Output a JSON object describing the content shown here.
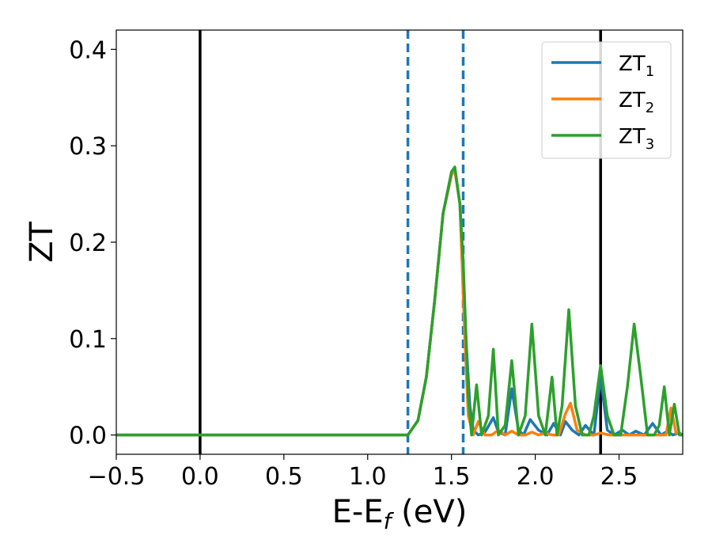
{
  "chart_data": {
    "type": "line",
    "title": "",
    "xlabel": {
      "main": "E-E",
      "sub": "f",
      "tail": " (eV)"
    },
    "ylabel": "ZT",
    "xlim": [
      -0.5,
      2.88
    ],
    "ylim": [
      -0.02,
      0.42
    ],
    "xticks": [
      -0.5,
      0.0,
      0.5,
      1.0,
      1.5,
      2.0,
      2.5
    ],
    "xtick_labels": [
      "−0.5",
      "0.0",
      "0.5",
      "1.0",
      "1.5",
      "2.0",
      "2.5"
    ],
    "yticks": [
      0.0,
      0.1,
      0.2,
      0.3,
      0.4
    ],
    "ytick_labels": [
      "0.0",
      "0.1",
      "0.2",
      "0.3",
      "0.4"
    ],
    "grid": false,
    "legend_position": "top-right",
    "vlines": [
      {
        "x": 0.0,
        "style": "solid",
        "color": "#000000"
      },
      {
        "x": 2.39,
        "style": "solid",
        "color": "#000000"
      },
      {
        "x": 1.24,
        "style": "dashed",
        "color": "#1f77b4"
      },
      {
        "x": 1.57,
        "style": "dashed",
        "color": "#1f77b4"
      }
    ],
    "series": [
      {
        "name": "ZT",
        "subscript": "1",
        "color": "#1f77b4",
        "x": [
          -0.5,
          1.24,
          1.3,
          1.35,
          1.4,
          1.45,
          1.5,
          1.52,
          1.55,
          1.58,
          1.61,
          1.63,
          1.66,
          1.7,
          1.75,
          1.78,
          1.82,
          1.86,
          1.9,
          1.93,
          1.97,
          2.02,
          2.07,
          2.11,
          2.15,
          2.18,
          2.22,
          2.26,
          2.3,
          2.35,
          2.39,
          2.43,
          2.47,
          2.52,
          2.56,
          2.6,
          2.65,
          2.7,
          2.75,
          2.79,
          2.82,
          2.86,
          2.88
        ],
        "y": [
          0.0,
          0.0,
          0.015,
          0.06,
          0.14,
          0.23,
          0.27,
          0.275,
          0.24,
          0.12,
          0.03,
          0.005,
          0.0,
          0.003,
          0.018,
          0.003,
          0.0,
          0.048,
          0.005,
          0.0,
          0.016,
          0.005,
          0.0,
          0.012,
          0.0,
          0.014,
          0.005,
          0.0,
          0.01,
          0.0,
          0.06,
          0.005,
          0.0,
          0.005,
          0.0,
          0.004,
          0.0,
          0.012,
          0.0,
          0.004,
          0.0,
          0.002,
          0.0
        ]
      },
      {
        "name": "ZT",
        "subscript": "2",
        "color": "#ff7f0e",
        "x": [
          -0.5,
          1.24,
          1.3,
          1.35,
          1.4,
          1.45,
          1.5,
          1.52,
          1.55,
          1.58,
          1.6,
          1.63,
          1.66,
          1.7,
          1.74,
          1.78,
          1.82,
          1.86,
          1.9,
          1.94,
          1.98,
          2.02,
          2.06,
          2.1,
          2.14,
          2.18,
          2.21,
          2.25,
          2.3,
          2.35,
          2.39,
          2.44,
          2.5,
          2.55,
          2.6,
          2.65,
          2.7,
          2.74,
          2.78,
          2.81,
          2.84,
          2.88
        ],
        "y": [
          0.0,
          0.0,
          0.015,
          0.06,
          0.14,
          0.23,
          0.27,
          0.275,
          0.24,
          0.1,
          0.02,
          0.0,
          0.014,
          0.0,
          0.0,
          0.005,
          0.0,
          0.004,
          0.0,
          0.0,
          0.003,
          0.0,
          0.002,
          0.0,
          0.0,
          0.022,
          0.033,
          0.005,
          0.0,
          0.0,
          0.002,
          0.0,
          0.0,
          0.0,
          0.0,
          0.0,
          0.0,
          0.0,
          0.0,
          0.028,
          0.002,
          0.0
        ]
      },
      {
        "name": "ZT",
        "subscript": "3",
        "color": "#2ca02c",
        "x": [
          -0.5,
          1.24,
          1.3,
          1.35,
          1.4,
          1.45,
          1.5,
          1.52,
          1.55,
          1.57,
          1.6,
          1.62,
          1.65,
          1.68,
          1.72,
          1.75,
          1.78,
          1.82,
          1.86,
          1.9,
          1.94,
          1.98,
          2.02,
          2.06,
          2.1,
          2.13,
          2.16,
          2.2,
          2.24,
          2.28,
          2.32,
          2.35,
          2.39,
          2.43,
          2.47,
          2.51,
          2.55,
          2.59,
          2.63,
          2.67,
          2.71,
          2.74,
          2.77,
          2.8,
          2.83,
          2.86,
          2.88
        ],
        "y": [
          0.0,
          0.0,
          0.015,
          0.06,
          0.14,
          0.23,
          0.273,
          0.278,
          0.24,
          0.18,
          0.04,
          0.0,
          0.052,
          0.0,
          0.02,
          0.089,
          0.0,
          0.01,
          0.077,
          0.0,
          0.02,
          0.115,
          0.02,
          0.0,
          0.06,
          0.0,
          0.03,
          0.13,
          0.03,
          0.0,
          0.0,
          0.02,
          0.072,
          0.02,
          0.0,
          0.0,
          0.05,
          0.115,
          0.06,
          0.0,
          0.0,
          0.01,
          0.05,
          0.0,
          0.032,
          0.0,
          0.0
        ]
      }
    ]
  }
}
